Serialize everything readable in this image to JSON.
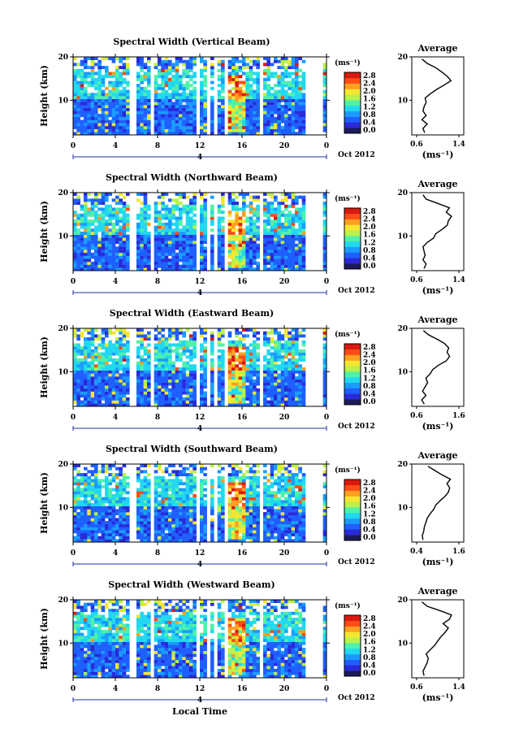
{
  "x_axis": {
    "ticks": [
      "0",
      "4",
      "8",
      "12",
      "16",
      "20",
      "0"
    ],
    "day_label": "4",
    "month_label": "Oct 2012",
    "label": "Local Time"
  },
  "colorbar": {
    "unit": "(ms⁻¹)",
    "labels": [
      "2.8",
      "2.4",
      "2.0",
      "1.6",
      "1.2",
      "0.8",
      "0.4",
      "0.0"
    ],
    "colors": [
      "#1a1a5a",
      "#2a2ad8",
      "#1f5fff",
      "#1a9cff",
      "#22d8f0",
      "#4ef2a8",
      "#b8f24a",
      "#f5e632",
      "#ffa020",
      "#ff4d14",
      "#d91a0f"
    ]
  },
  "chart_data": [
    {
      "type": "heatmap",
      "title": "Spectral Width (Vertical Beam)",
      "ylabel": "Height (km)",
      "xlabel": "Local Time",
      "xlim": [
        0,
        24
      ],
      "ylim": [
        2,
        20
      ],
      "yticks": [
        "20",
        "10"
      ],
      "colorbar_range": [
        0.0,
        3.0
      ],
      "average": {
        "title": "Average",
        "xlabel": "(ms⁻¹)",
        "xticks": [
          "0.6",
          "1.4"
        ],
        "xlim": [
          0.6,
          1.4
        ],
        "heights": [
          2.5,
          3.5,
          4.5,
          5.5,
          6.5,
          7.5,
          8.5,
          9.5,
          10.5,
          11.5,
          12.5,
          13.5,
          14.5,
          15.5,
          16.5,
          17.5,
          18.5,
          19.5
        ],
        "values": [
          0.75,
          0.72,
          0.8,
          0.7,
          0.78,
          0.72,
          0.74,
          0.78,
          0.76,
          0.86,
          0.98,
          1.12,
          1.25,
          1.18,
          1.08,
          0.96,
          0.8,
          0.7
        ]
      }
    },
    {
      "type": "heatmap",
      "title": "Spectral Width (Northward Beam)",
      "ylabel": "Height (km)",
      "xlabel": "Local Time",
      "xlim": [
        0,
        24
      ],
      "ylim": [
        2,
        20
      ],
      "yticks": [
        "20",
        "10"
      ],
      "colorbar_range": [
        0.0,
        3.0
      ],
      "average": {
        "title": "Average",
        "xlabel": "(ms⁻¹)",
        "xticks": [
          "0.6",
          "1.4"
        ],
        "xlim": [
          0.6,
          1.4
        ],
        "heights": [
          2.5,
          3.5,
          4.5,
          5.5,
          6.5,
          7.5,
          8.5,
          9.5,
          10.5,
          11.5,
          12.5,
          13.5,
          14.5,
          15.5,
          16.5,
          17.5,
          18.5,
          19.5
        ],
        "values": [
          0.74,
          0.78,
          0.72,
          0.76,
          0.74,
          0.72,
          0.8,
          0.92,
          0.96,
          1.08,
          1.18,
          1.2,
          1.26,
          1.16,
          1.22,
          1.0,
          0.78,
          0.72
        ]
      }
    },
    {
      "type": "heatmap",
      "title": "Spectral Width (Eastward Beam)",
      "ylabel": "Height (km)",
      "xlabel": "Local Time",
      "xlim": [
        0,
        24
      ],
      "ylim": [
        2,
        20
      ],
      "yticks": [
        "20",
        "10"
      ],
      "colorbar_range": [
        0.0,
        3.0
      ],
      "average": {
        "title": "Average",
        "xlabel": "(ms⁻¹)",
        "xticks": [
          "0.6",
          "1.6"
        ],
        "xlim": [
          0.6,
          1.6
        ],
        "heights": [
          2.5,
          3.5,
          4.5,
          5.5,
          6.5,
          7.5,
          8.5,
          9.5,
          10.5,
          11.5,
          12.5,
          13.5,
          14.5,
          15.5,
          16.5,
          17.5,
          18.5,
          19.5
        ],
        "values": [
          0.78,
          0.72,
          0.82,
          0.74,
          0.8,
          0.86,
          0.82,
          0.92,
          0.98,
          1.12,
          1.3,
          1.38,
          1.32,
          1.36,
          1.26,
          1.08,
          0.88,
          0.76
        ]
      }
    },
    {
      "type": "heatmap",
      "title": "Spectral Width (Southward Beam)",
      "ylabel": "Height (km)",
      "xlabel": "Local Time",
      "xlim": [
        0,
        24
      ],
      "ylim": [
        2,
        20
      ],
      "yticks": [
        "20",
        "10"
      ],
      "colorbar_range": [
        0.0,
        3.0
      ],
      "average": {
        "title": "Average",
        "xlabel": "(ms⁻¹)",
        "xticks": [
          "0.4",
          "1.6"
        ],
        "xlim": [
          0.4,
          1.6
        ],
        "heights": [
          2.5,
          3.5,
          4.5,
          5.5,
          6.5,
          7.5,
          8.5,
          9.5,
          10.5,
          11.5,
          12.5,
          13.5,
          14.5,
          15.5,
          16.5,
          17.5,
          18.5,
          19.5
        ],
        "values": [
          0.58,
          0.56,
          0.6,
          0.62,
          0.66,
          0.7,
          0.78,
          0.88,
          0.94,
          1.06,
          1.2,
          1.3,
          1.34,
          1.26,
          1.36,
          1.12,
          0.92,
          0.72
        ]
      }
    },
    {
      "type": "heatmap",
      "title": "Spectral Width (Westward Beam)",
      "ylabel": "Height (km)",
      "xlabel": "Local Time",
      "xlim": [
        0,
        24
      ],
      "ylim": [
        2,
        20
      ],
      "yticks": [
        "20",
        "10"
      ],
      "colorbar_range": [
        0.0,
        3.0
      ],
      "average": {
        "title": "Average",
        "xlabel": "(ms⁻¹)",
        "xticks": [
          "0.6",
          "1.4"
        ],
        "xlim": [
          0.6,
          1.4
        ],
        "heights": [
          2.5,
          3.5,
          4.5,
          5.5,
          6.5,
          7.5,
          8.5,
          9.5,
          10.5,
          11.5,
          12.5,
          13.5,
          14.5,
          15.5,
          16.5,
          17.5,
          18.5,
          19.5
        ],
        "values": [
          0.74,
          0.72,
          0.76,
          0.8,
          0.82,
          0.78,
          0.86,
          0.94,
          1.0,
          1.06,
          1.14,
          1.2,
          1.1,
          1.22,
          1.26,
          1.04,
          0.8,
          0.7
        ]
      }
    }
  ]
}
